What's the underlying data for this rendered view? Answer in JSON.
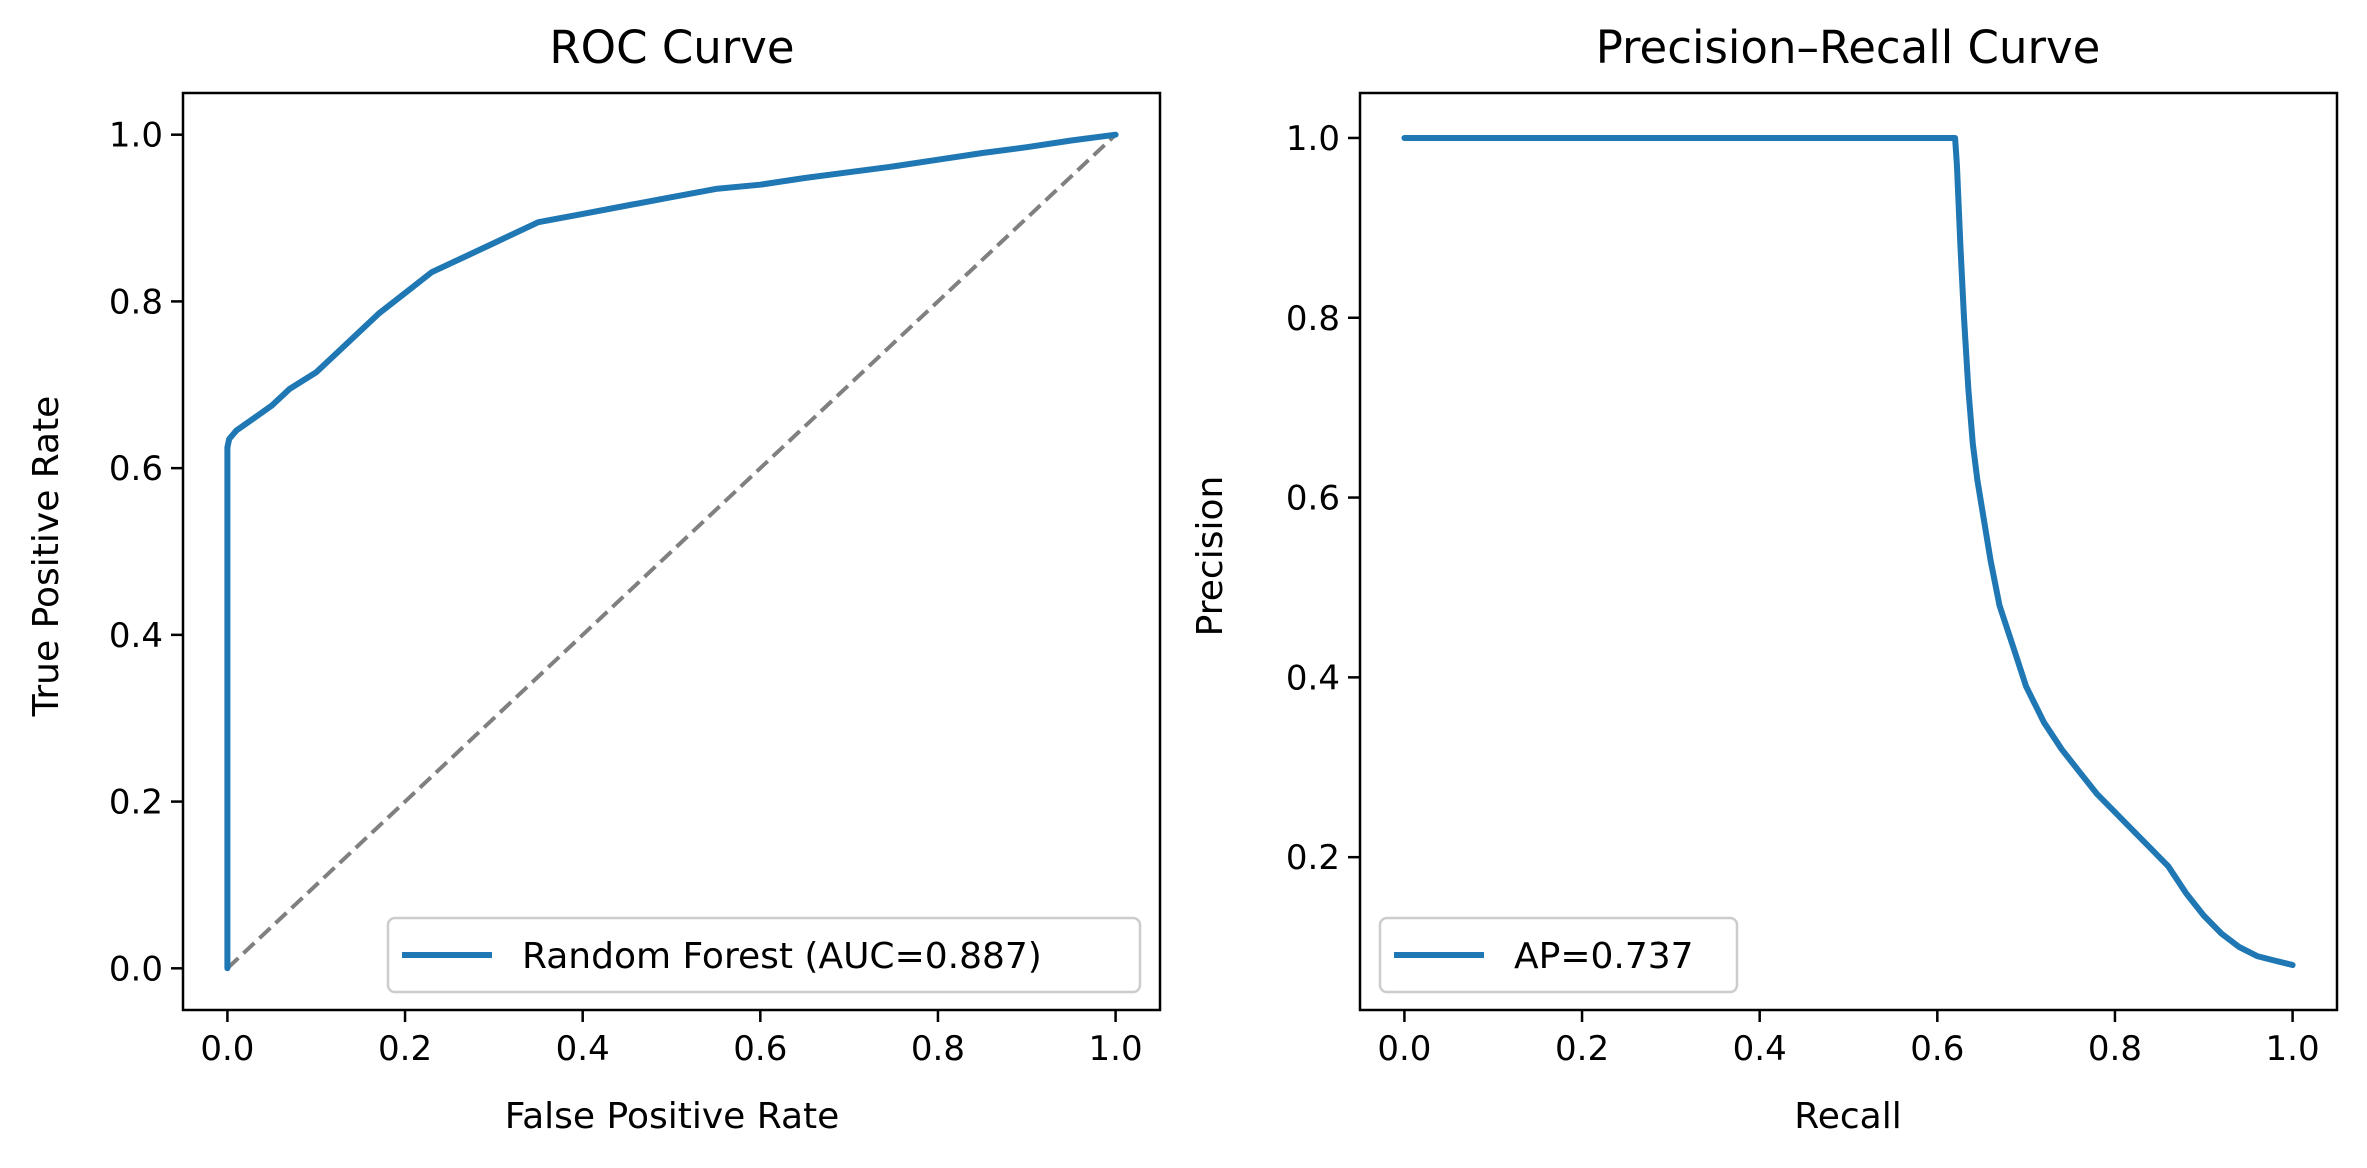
{
  "chart_data": [
    {
      "type": "line",
      "title": "ROC Curve",
      "xlabel": "False Positive Rate",
      "ylabel": "True Positive Rate",
      "xlim": [
        -0.05,
        1.05
      ],
      "ylim": [
        -0.05,
        1.05
      ],
      "xticks": [
        "0.0",
        "0.2",
        "0.4",
        "0.6",
        "0.8",
        "1.0"
      ],
      "yticks": [
        "0.0",
        "0.2",
        "0.4",
        "0.6",
        "0.8",
        "1.0"
      ],
      "grid": false,
      "legend_position": "lower-right",
      "series": [
        {
          "name": "Random Forest (AUC=0.887)",
          "color": "#1f77b4",
          "style": "solid",
          "x": [
            0,
            0,
            0.002,
            0.01,
            0.03,
            0.05,
            0.07,
            0.1,
            0.13,
            0.17,
            0.2,
            0.23,
            0.27,
            0.3,
            0.35,
            0.4,
            0.45,
            0.5,
            0.55,
            0.6,
            0.65,
            0.7,
            0.75,
            0.8,
            0.85,
            0.9,
            0.95,
            1.0
          ],
          "y": [
            0,
            0.625,
            0.635,
            0.645,
            0.66,
            0.675,
            0.695,
            0.715,
            0.745,
            0.785,
            0.81,
            0.835,
            0.855,
            0.87,
            0.895,
            0.905,
            0.915,
            0.925,
            0.935,
            0.94,
            0.948,
            0.955,
            0.962,
            0.97,
            0.978,
            0.985,
            0.993,
            1.0
          ]
        },
        {
          "color": "#808080",
          "style": "dashed",
          "x": [
            0,
            1
          ],
          "y": [
            0,
            1
          ]
        }
      ]
    },
    {
      "type": "line",
      "title": "Precision–Recall Curve",
      "xlabel": "Recall",
      "ylabel": "Precision",
      "xlim": [
        -0.05,
        1.05
      ],
      "ylim": [
        0.03,
        1.05
      ],
      "xticks": [
        "0.0",
        "0.2",
        "0.4",
        "0.6",
        "0.8",
        "1.0"
      ],
      "yticks": [
        "0.2",
        "0.4",
        "0.6",
        "0.8",
        "1.0"
      ],
      "grid": false,
      "legend_position": "lower-left",
      "series": [
        {
          "name": "AP=0.737",
          "color": "#1f77b4",
          "style": "solid",
          "x": [
            0,
            0.62,
            0.622,
            0.626,
            0.63,
            0.635,
            0.64,
            0.645,
            0.65,
            0.66,
            0.67,
            0.68,
            0.69,
            0.7,
            0.72,
            0.74,
            0.76,
            0.78,
            0.8,
            0.82,
            0.84,
            0.86,
            0.88,
            0.9,
            0.92,
            0.94,
            0.96,
            0.98,
            1.0
          ],
          "y": [
            1.0,
            1.0,
            0.97,
            0.88,
            0.8,
            0.72,
            0.66,
            0.62,
            0.59,
            0.53,
            0.48,
            0.45,
            0.42,
            0.39,
            0.35,
            0.32,
            0.295,
            0.27,
            0.25,
            0.23,
            0.21,
            0.19,
            0.16,
            0.135,
            0.115,
            0.1,
            0.09,
            0.085,
            0.08
          ]
        }
      ]
    }
  ]
}
